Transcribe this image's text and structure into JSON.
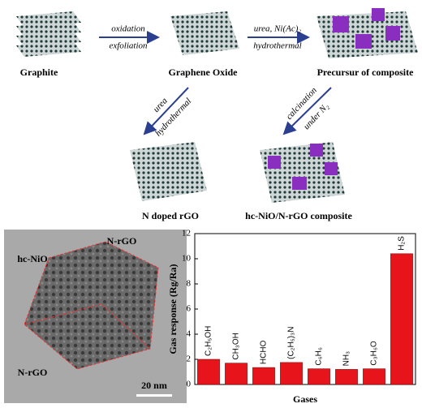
{
  "schematic": {
    "graphite": "Graphite",
    "graphene_oxide": "Graphene Oxide",
    "precursor": "Precursur of composite",
    "n_doped": "N doped rGO",
    "composite": "hc-NiO/N-rGO composite",
    "arrow1_top": "oxidation",
    "arrow1_bottom": "exfoliation",
    "arrow2_top": "urea, Ni(Ac)₂",
    "arrow2_bottom": "hydrothermal",
    "arrow3_top": "urea",
    "arrow3_bottom": "hydrothermal",
    "arrow4_top": "calcination",
    "arrow4_bottom": "under N₂"
  },
  "tem": {
    "label_top": "N-rGO",
    "label_hc": "hc-NiO",
    "label_bottom": "N-rGO",
    "scale": "20 nm"
  },
  "chart_data": {
    "type": "bar",
    "x_label": "Gases",
    "y_label": "Gas response (Rg/Ra)",
    "categories": [
      "C₂H₅OH",
      "CH₃OH",
      "HCHO",
      "(C₂H₅)₃N",
      "C₆H₆",
      "NH₃",
      "C₃H₆O",
      "H₂S"
    ],
    "values": [
      2.0,
      1.7,
      1.35,
      1.75,
      1.25,
      1.2,
      1.25,
      10.4
    ],
    "color": "#e8141b",
    "ylim": [
      0,
      12
    ],
    "yticks": [
      0,
      2,
      4,
      6,
      8,
      10,
      12
    ]
  }
}
